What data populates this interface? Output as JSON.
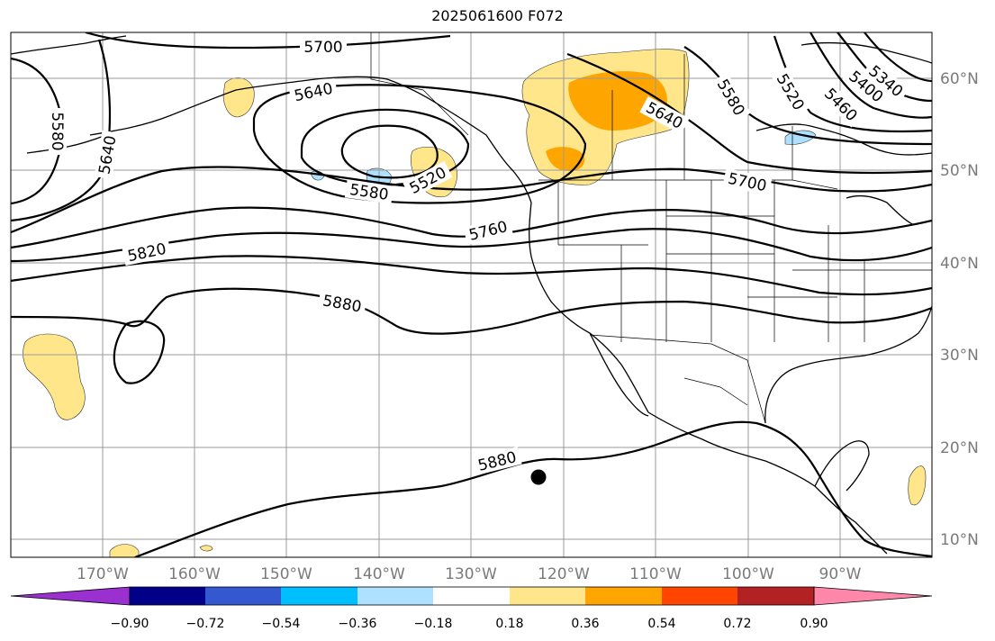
{
  "title": "2025061600 F072",
  "map": {
    "lon_labels": [
      "170°W",
      "160°W",
      "150°W",
      "140°W",
      "130°W",
      "120°W",
      "110°W",
      "100°W",
      "90°W"
    ],
    "lat_labels": [
      "60°N",
      "50°N",
      "40°N",
      "30°N",
      "20°N",
      "10°N"
    ],
    "contour_labels": [
      "5700",
      "5640",
      "5580",
      "5520",
      "5640",
      "5580",
      "5520",
      "5460",
      "5400",
      "5340",
      "5580",
      "5640",
      "5700",
      "5760",
      "5820",
      "5880",
      "5880"
    ],
    "marker": {
      "label": "storm-marker",
      "color": "#000000"
    }
  },
  "colorbar": {
    "colors": [
      "#9b30d0",
      "#000088",
      "#3358d0",
      "#00bfff",
      "#aee0ff",
      "#ffffff",
      "#ffe68a",
      "#ffa500",
      "#ff4500",
      "#b22222",
      "#ff88aa"
    ],
    "ticks": [
      "−0.90",
      "−0.72",
      "−0.54",
      "−0.36",
      "−0.18",
      "0.18",
      "0.36",
      "0.54",
      "0.72",
      "0.90"
    ]
  },
  "shading_colors": {
    "light_yellow": "#ffe68a",
    "orange": "#ffa500",
    "light_blue": "#aee0ff"
  }
}
